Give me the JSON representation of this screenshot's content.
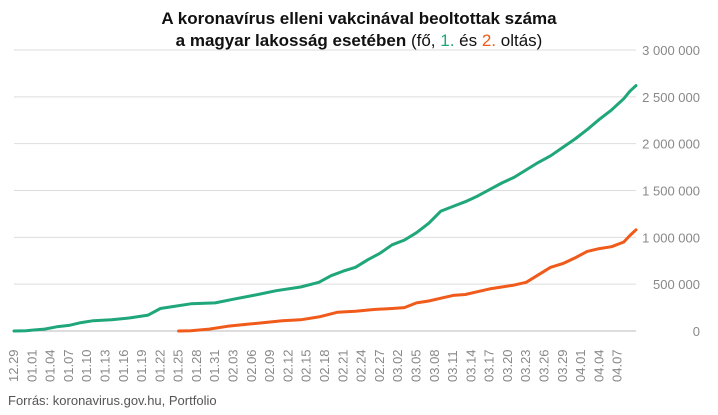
{
  "title": {
    "line1": "A koronavírus elleni vakcinával beoltottak száma",
    "line2_bold": "a magyar lakosság esetében",
    "line2_open": " (fő, ",
    "first_label": "1.",
    "between": " és ",
    "second_label": "2.",
    "line2_close": " oltás)"
  },
  "source": "Forrás: koronavirus.gov.hu, Portfolio",
  "colors": {
    "first": "#1fa67a",
    "second": "#f05a1a",
    "grid": "#dddddd",
    "axis_text": "#888888"
  },
  "chart_data": {
    "type": "line",
    "x_labels": [
      "12.29",
      "01.01",
      "01.04",
      "01.07",
      "01.10",
      "01.13",
      "01.16",
      "01.19",
      "01.22",
      "01.25",
      "01.28",
      "01.31",
      "02.03",
      "02.06",
      "02.09",
      "02.12",
      "02.15",
      "02.18",
      "02.21",
      "02.24",
      "02.27",
      "03.02",
      "03.05",
      "03.08",
      "03.11",
      "03.14",
      "03.17",
      "03.20",
      "03.23",
      "03.26",
      "03.29",
      "04.01",
      "04.04",
      "04.07"
    ],
    "y_ticks": [
      "0",
      "500 000",
      "1 000 000",
      "1 500 000",
      "2 000 000",
      "2 500 000",
      "3 000 000"
    ],
    "ylim": [
      0,
      3000000
    ],
    "series": [
      {
        "key": "first",
        "points": [
          [
            0,
            0
          ],
          [
            2,
            2000
          ],
          [
            3,
            10000
          ],
          [
            5,
            20000
          ],
          [
            7,
            45000
          ],
          [
            9,
            60000
          ],
          [
            11,
            90000
          ],
          [
            13,
            110000
          ],
          [
            16,
            120000
          ],
          [
            19,
            140000
          ],
          [
            22,
            170000
          ],
          [
            24,
            240000
          ],
          [
            26,
            260000
          ],
          [
            29,
            290000
          ],
          [
            33,
            300000
          ],
          [
            36,
            340000
          ],
          [
            40,
            390000
          ],
          [
            43,
            430000
          ],
          [
            47,
            470000
          ],
          [
            50,
            520000
          ],
          [
            52,
            590000
          ],
          [
            54,
            640000
          ],
          [
            56,
            680000
          ],
          [
            58,
            760000
          ],
          [
            60,
            830000
          ],
          [
            62,
            920000
          ],
          [
            64,
            970000
          ],
          [
            66,
            1050000
          ],
          [
            68,
            1150000
          ],
          [
            70,
            1280000
          ],
          [
            72,
            1330000
          ],
          [
            74,
            1380000
          ],
          [
            76,
            1440000
          ],
          [
            78,
            1510000
          ],
          [
            80,
            1580000
          ],
          [
            82,
            1640000
          ],
          [
            84,
            1720000
          ],
          [
            86,
            1800000
          ],
          [
            88,
            1870000
          ],
          [
            90,
            1960000
          ],
          [
            92,
            2050000
          ],
          [
            94,
            2150000
          ],
          [
            96,
            2260000
          ],
          [
            98,
            2360000
          ],
          [
            100,
            2480000
          ],
          [
            101,
            2560000
          ],
          [
            102,
            2620000
          ]
        ]
      },
      {
        "key": "second",
        "points": [
          [
            27,
            0
          ],
          [
            29,
            2000
          ],
          [
            32,
            20000
          ],
          [
            35,
            50000
          ],
          [
            38,
            70000
          ],
          [
            41,
            90000
          ],
          [
            44,
            110000
          ],
          [
            47,
            120000
          ],
          [
            50,
            150000
          ],
          [
            53,
            200000
          ],
          [
            56,
            210000
          ],
          [
            59,
            230000
          ],
          [
            62,
            240000
          ],
          [
            64,
            250000
          ],
          [
            66,
            300000
          ],
          [
            68,
            320000
          ],
          [
            70,
            350000
          ],
          [
            72,
            380000
          ],
          [
            74,
            390000
          ],
          [
            76,
            420000
          ],
          [
            78,
            450000
          ],
          [
            80,
            470000
          ],
          [
            82,
            490000
          ],
          [
            84,
            520000
          ],
          [
            86,
            600000
          ],
          [
            88,
            680000
          ],
          [
            90,
            720000
          ],
          [
            92,
            780000
          ],
          [
            94,
            850000
          ],
          [
            96,
            880000
          ],
          [
            98,
            900000
          ],
          [
            100,
            950000
          ],
          [
            101,
            1020000
          ],
          [
            102,
            1080000
          ]
        ]
      }
    ],
    "x_days": 102
  }
}
